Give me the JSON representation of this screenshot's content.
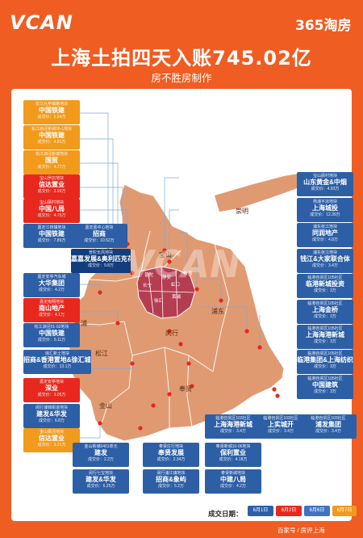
{
  "header": {
    "brand_left": "VCAN",
    "brand_right": "365淘房",
    "title": "上海土拍四天入账745.02亿",
    "subtitle": "房不胜房制作"
  },
  "watermark": "VCAN",
  "districts": [
    "嘉定",
    "宝山",
    "崇明",
    "青浦",
    "闵行",
    "浦东",
    "松江",
    "奉贤",
    "金山",
    "长宁",
    "普陀",
    "静安",
    "杨浦",
    "虹口",
    "黄浦",
    "徐汇"
  ],
  "colors": {
    "jun1": "#2d5fa6",
    "jun2": "#e8281e",
    "jun6": "#2d5fa6",
    "jun7": "#f29a1b",
    "map": "#e09a72",
    "urban": "#b53d52"
  },
  "cards": [
    {
      "n1": "松江九亭镇路地块",
      "n2": "中国铁建",
      "n3": "成交价：5.54万"
    },
    {
      "n1": "松江泗泾新城09-1地块",
      "n2": "中国铁建",
      "n3": "成交价：4.81万"
    },
    {
      "n1": "松江泗泾新城地块",
      "n2": "国贸",
      "n3": "成交价：4.77万"
    },
    {
      "n1": "宝山罗店地块",
      "n2": "信达置业",
      "n3": "成交价：3.99万"
    },
    {
      "n1": "宝山顾村地块",
      "n2": "中国八局",
      "n3": "成交价：4.75万"
    },
    {
      "n1": "嘉定江桥镇地块",
      "n2": "中国铁建",
      "n3": "成交价：7.89万"
    },
    {
      "n1": "嘉定嘉中心地块",
      "n2": "招商",
      "n3": "成交价：10.52万"
    },
    {
      "n1": "普陀长风地块",
      "n2": "嘉嘉发展&奥利匹克花园",
      "n3": "成交价：9.8万"
    },
    {
      "n1": "嘉定安亭汽车城",
      "n2": "大华集团",
      "n3": "成交价：4.2万"
    },
    {
      "n1": "嘉定南翔地块",
      "n2": "南山地产",
      "n3": "成交价：4.1万"
    },
    {
      "n1": "松江泗泾01-02地块",
      "n2": "中国铁建",
      "n3": "成交价：5.11万"
    },
    {
      "n1": "徐汇新土地块",
      "n2": "招商&香港置地&徐汇城投",
      "n3": "成交价：13.1万"
    },
    {
      "n1": "嘉定安亭地块",
      "n2": "深业",
      "n3": "成交价：3.05万"
    },
    {
      "n1": "闵行浦锦街道地块",
      "n2": "建发&华发",
      "n3": "成交价：6.8万"
    },
    {
      "n1": "金山枫泾地块",
      "n2": "信达置业",
      "n3": "成交价：3.25万"
    },
    {
      "n1": "宝山顾村地块",
      "n2": "山东黄金&中烟",
      "n3": "成交价：4.93万"
    },
    {
      "n1": "杨浦平凉地块",
      "n2": "上海城投",
      "n3": "成交价：12.39万"
    },
    {
      "n1": "浦东张江地块",
      "n2": "同润地产",
      "n3": "成交价：4.8万"
    },
    {
      "n1": "浦东张江地块",
      "n2": "钱江&大家联合体",
      "n3": "成交价：3.4万"
    },
    {
      "n1": "临港自贸区105社区",
      "n2": "临港新城投资",
      "n3": "成交价：3万"
    },
    {
      "n1": "临港自贸区105社区",
      "n2": "上海金桥",
      "n3": "成交价：3万"
    },
    {
      "n1": "临港自贸区105社区",
      "n2": "上海海港新城",
      "n3": "成交价：3万"
    },
    {
      "n1": "临港自贸区105社区",
      "n2": "临港集团&上海纺织",
      "n3": "成交价：3万"
    },
    {
      "n1": "临港自贸区105社区",
      "n2": "中国建筑",
      "n3": "成交价：3万"
    },
    {
      "n1": "临港自贸区103社区",
      "n2": "上海海港新城",
      "n3": "成交价：3.4万"
    },
    {
      "n1": "临港自贸区103社区",
      "n2": "上实城开",
      "n3": "成交价：3.4万"
    },
    {
      "n1": "临港自贸区103社区",
      "n2": "浦发集团",
      "n3": "成交价：3.4万"
    },
    {
      "n1": "金山新城0401单元",
      "n2": "建发",
      "n3": "成交价：2.2万"
    },
    {
      "n1": "奉贤庄行地块",
      "n2": "奉贤发展",
      "n3": "成交价：2.34万"
    },
    {
      "n1": "奉贤新城10-06地块",
      "n2": "保利置业",
      "n3": "成交价：4.18万"
    },
    {
      "n1": "闵行七宝地块",
      "n2": "建发&华发",
      "n3": "成交价：6.25万"
    },
    {
      "n1": "闵行浦江镇地块",
      "n2": "招商&象屿",
      "n3": "成交价：5.2万"
    },
    {
      "n1": "奉贤新城地块",
      "n2": "中建八局",
      "n3": "成交价：4.2万"
    }
  ],
  "legend": {
    "label": "成交日期：",
    "items": [
      "6月1日",
      "6月2日",
      "6月6日",
      "6月7日"
    ]
  },
  "footer": {
    "credit": "百家号 / 房评上海"
  }
}
